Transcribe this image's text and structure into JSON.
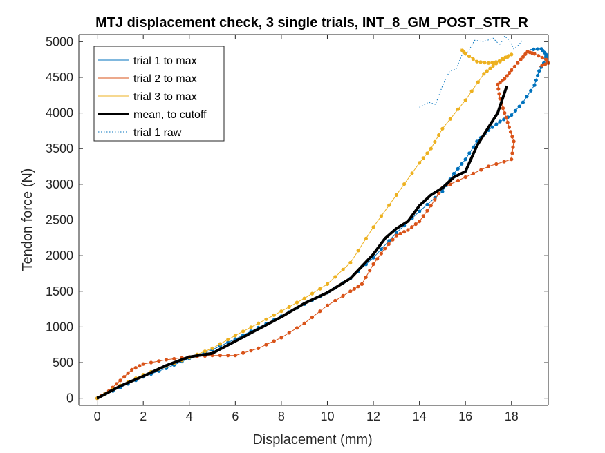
{
  "chart_data": {
    "type": "line",
    "title": "MTJ displacement check, 3 single trials, INT_8_GM_POST_STR_R",
    "xlabel": "Displacement (mm)",
    "ylabel": "Tendon force (N)",
    "xlim": [
      -0.8,
      19.6
    ],
    "ylim": [
      -100,
      5100
    ],
    "xticks": [
      0,
      2,
      4,
      6,
      8,
      10,
      12,
      14,
      16,
      18
    ],
    "yticks": [
      0,
      500,
      1000,
      1500,
      2000,
      2500,
      3000,
      3500,
      4000,
      4500,
      5000
    ],
    "grid": false,
    "legend_position": "top-left",
    "series": [
      {
        "name": "trial 1 to max",
        "color": "#0072BD",
        "style": "dotted-markers",
        "x": [
          0,
          1,
          2,
          3,
          4,
          5,
          6,
          7,
          8,
          9,
          10,
          11,
          12,
          13,
          14,
          15,
          15.5,
          16,
          16.5,
          17,
          17.5,
          18,
          18.5,
          19,
          19.2,
          19.5,
          19.5,
          19.3,
          18.8
        ],
        "y": [
          0,
          150,
          300,
          420,
          560,
          680,
          830,
          990,
          1150,
          1320,
          1480,
          1680,
          1970,
          2320,
          2620,
          2900,
          3150,
          3350,
          3600,
          3760,
          3880,
          3970,
          4150,
          4390,
          4590,
          4750,
          4820,
          4900,
          4890
        ]
      },
      {
        "name": "trial 2 to max",
        "color": "#D95319",
        "style": "dotted-markers",
        "x": [
          0,
          0.5,
          1,
          1.5,
          2,
          3,
          4,
          5,
          6,
          7,
          8,
          9,
          10,
          11,
          11.5,
          12,
          12.5,
          13,
          13.5,
          14,
          14.5,
          15,
          16,
          17,
          18,
          18.1,
          17.9,
          17.7,
          17.5,
          17.4,
          17.7,
          18,
          18.4,
          18.7,
          19.0,
          19.5,
          19.6,
          19.2
        ],
        "y": [
          0,
          100,
          250,
          400,
          480,
          540,
          580,
          600,
          600,
          700,
          850,
          1050,
          1300,
          1500,
          1600,
          1880,
          2100,
          2280,
          2360,
          2480,
          2700,
          2950,
          3100,
          3250,
          3350,
          3600,
          3800,
          4000,
          4200,
          4400,
          4480,
          4600,
          4750,
          4860,
          4830,
          4750,
          4700,
          4650
        ]
      },
      {
        "name": "trial 3 to max",
        "color": "#EDB120",
        "style": "dotted-markers",
        "x": [
          0,
          1,
          2,
          3,
          4,
          5,
          6,
          7,
          8,
          9,
          10,
          11,
          12,
          13,
          14,
          14.5,
          15,
          16,
          16.8,
          17.2,
          17.6,
          18.0,
          17.5,
          17.0,
          16.5,
          16.0,
          15.8
        ],
        "y": [
          0,
          180,
          330,
          450,
          570,
          700,
          880,
          1050,
          1220,
          1400,
          1600,
          1900,
          2400,
          2850,
          3300,
          3500,
          3780,
          4180,
          4550,
          4660,
          4760,
          4820,
          4720,
          4700,
          4720,
          4830,
          4900
        ]
      },
      {
        "name": "mean, to cutoff",
        "color": "#000000",
        "style": "thick-line",
        "x": [
          0,
          1,
          2,
          3,
          4,
          5,
          6,
          7,
          8,
          9,
          10,
          11,
          12,
          12.5,
          13,
          13.5,
          14,
          14.5,
          15,
          15.5,
          16,
          16.5,
          17,
          17.4,
          17.8
        ],
        "y": [
          0,
          170,
          310,
          460,
          580,
          630,
          800,
          970,
          1140,
          1330,
          1480,
          1680,
          2020,
          2240,
          2380,
          2480,
          2700,
          2850,
          2950,
          3100,
          3180,
          3540,
          3800,
          4000,
          4380
        ]
      },
      {
        "name": "trial 1 raw",
        "color": "#0072BD",
        "style": "dotted-line",
        "x": [
          14.0,
          14.4,
          14.7,
          15.0,
          15.3,
          15.6,
          15.7,
          15.9,
          16.1,
          16.4,
          16.8,
          17.2,
          17.5,
          17.7,
          17.9,
          18.1,
          18.3,
          18.5
        ],
        "y": [
          4080,
          4150,
          4120,
          4380,
          4580,
          4620,
          4700,
          4850,
          4850,
          5020,
          5000,
          5050,
          4950,
          5080,
          5020,
          4900,
          4950,
          5030
        ]
      }
    ]
  }
}
